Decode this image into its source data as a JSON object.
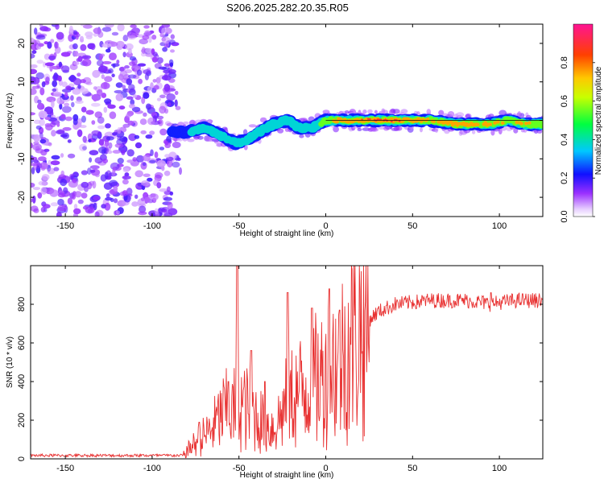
{
  "title": "S206.2025.282.20.35.R05",
  "chart_data": [
    {
      "type": "heatmap",
      "xlabel": "Height of straight line (km)",
      "ylabel": "Frequency (Hz)",
      "xlim": [
        -170,
        125
      ],
      "ylim": [
        -25,
        25
      ],
      "xticks": [
        -150,
        -100,
        -50,
        0,
        50,
        100
      ],
      "yticks": [
        -20,
        -10,
        0,
        10,
        20
      ],
      "noise_region_x": [
        -170,
        -88
      ],
      "ridge": {
        "x": [
          -88,
          -80,
          -70,
          -60,
          -52,
          -45,
          -38,
          -30,
          -22,
          -15,
          -8,
          0,
          10,
          25,
          40,
          60,
          75,
          85,
          95,
          105,
          115,
          125
        ],
        "freq": [
          -3,
          -3,
          -2,
          -4,
          -6,
          -5,
          -3,
          -1,
          0,
          -2,
          -2,
          0,
          0,
          0,
          0,
          0,
          -1,
          -1,
          -1,
          0,
          -1,
          -1
        ],
        "amplitude": [
          0.2,
          0.3,
          0.4,
          0.35,
          0.3,
          0.35,
          0.4,
          0.4,
          0.45,
          0.35,
          0.3,
          0.6,
          0.8,
          0.85,
          0.85,
          0.7,
          0.8,
          0.75,
          0.7,
          0.65,
          0.7,
          0.6
        ]
      },
      "colorbar": {
        "label": "Normalized spectral amplitude",
        "range": [
          0,
          1
        ],
        "ticks": [
          "0.0",
          "0.2",
          "0.4",
          "0.6",
          "0.8"
        ]
      }
    },
    {
      "type": "line",
      "xlabel": "Height of straight line (km)",
      "ylabel": "SNR (10 * v/v)",
      "xlim": [
        -170,
        125
      ],
      "ylim": [
        0,
        1000
      ],
      "xticks": [
        -150,
        -100,
        -50,
        0,
        50,
        100
      ],
      "yticks": [
        0,
        200,
        400,
        600,
        800
      ],
      "series": [
        {
          "name": "SNR",
          "color": "#e83030",
          "x": [
            -170,
            -150,
            -130,
            -110,
            -90,
            -82,
            -78,
            -74,
            -70,
            -66,
            -62,
            -58,
            -54,
            -50,
            -46,
            -42,
            -38,
            -34,
            -30,
            -26,
            -22,
            -18,
            -14,
            -10,
            -6,
            -2,
            2,
            6,
            10,
            15,
            20,
            25,
            30,
            35,
            40,
            50,
            60,
            70,
            80,
            90,
            95,
            100,
            110,
            125
          ],
          "values": [
            15,
            15,
            15,
            15,
            15,
            20,
            60,
            90,
            120,
            150,
            200,
            250,
            240,
            300,
            260,
            240,
            200,
            180,
            160,
            220,
            300,
            330,
            350,
            380,
            400,
            420,
            460,
            500,
            530,
            620,
            680,
            720,
            760,
            780,
            800,
            810,
            820,
            820,
            820,
            810,
            800,
            810,
            820,
            820
          ],
          "peaks": [
            {
              "x": -73,
              "value": 190
            },
            {
              "x": -56,
              "value": 400
            },
            {
              "x": -51,
              "value": 1000
            },
            {
              "x": -43,
              "value": 560
            },
            {
              "x": -35,
              "value": 400
            },
            {
              "x": -22,
              "value": 860
            },
            {
              "x": -8,
              "value": 780
            },
            {
              "x": 2,
              "value": 880
            },
            {
              "x": 8,
              "value": 770
            },
            {
              "x": 95,
              "value": 860
            }
          ]
        }
      ]
    }
  ]
}
